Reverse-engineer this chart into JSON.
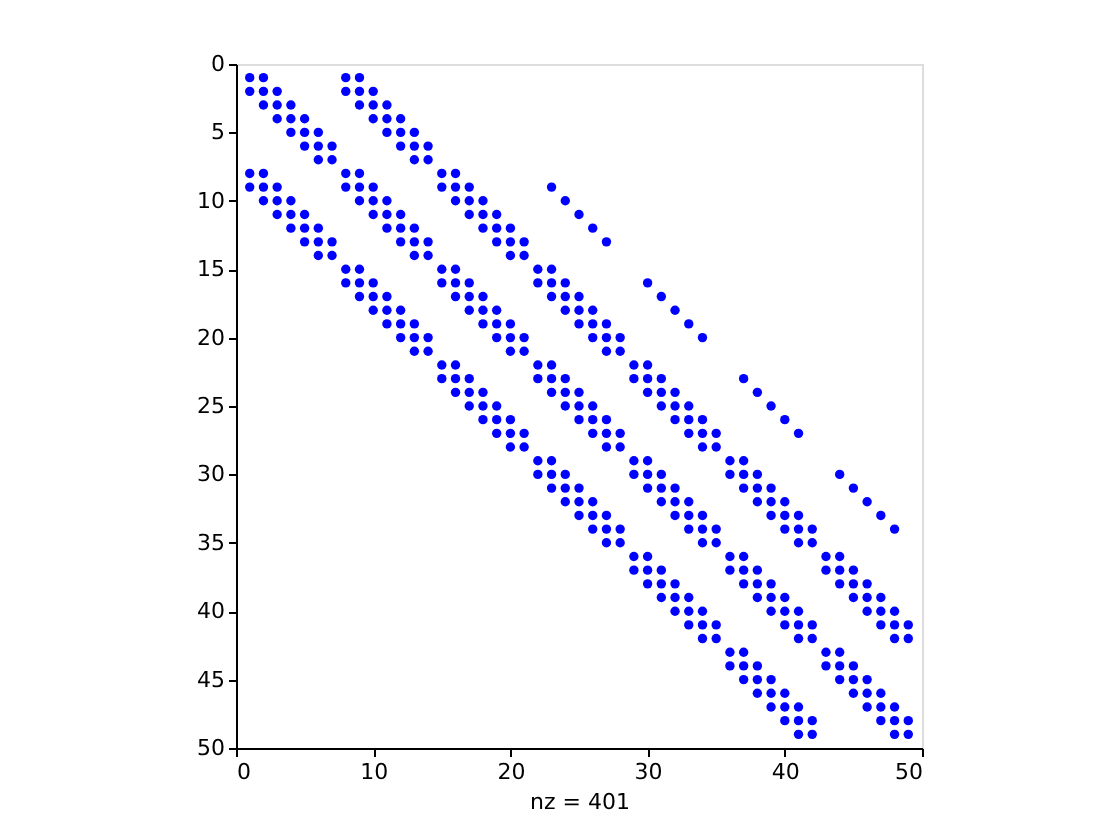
{
  "chart_data": {
    "type": "scatter",
    "xlabel": "nz = 401",
    "color": "#0000ff",
    "marker": "circle",
    "grid": false,
    "xlim": [
      0,
      50
    ],
    "xticks": [
      0,
      10,
      20,
      30,
      40,
      50
    ],
    "ylim": [
      50,
      0
    ],
    "yticks": [
      0,
      5,
      10,
      15,
      20,
      25,
      30,
      35,
      40,
      45,
      50
    ],
    "series": [
      {
        "x": [
          1,
          2,
          8,
          9
        ],
        "values": [
          1,
          1,
          1,
          1
        ]
      },
      {
        "x": [
          1,
          2,
          3,
          8,
          9,
          10
        ],
        "values": [
          2,
          2,
          2,
          2,
          2,
          2
        ]
      },
      {
        "x": [
          2,
          3,
          4,
          9,
          10,
          11
        ],
        "values": [
          3,
          3,
          3,
          3,
          3,
          3
        ]
      },
      {
        "x": [
          3,
          4,
          5,
          10,
          11,
          12
        ],
        "values": [
          4,
          4,
          4,
          4,
          4,
          4
        ]
      },
      {
        "x": [
          4,
          5,
          6,
          11,
          12,
          13
        ],
        "values": [
          5,
          5,
          5,
          5,
          5,
          5
        ]
      },
      {
        "x": [
          5,
          6,
          7,
          12,
          13,
          14
        ],
        "values": [
          6,
          6,
          6,
          6,
          6,
          6
        ]
      },
      {
        "x": [
          6,
          7,
          13,
          14
        ],
        "values": [
          7,
          7,
          7,
          7
        ]
      },
      {
        "x": [
          1,
          2,
          8,
          9,
          15,
          16
        ],
        "values": [
          8,
          8,
          8,
          8,
          8,
          8
        ]
      },
      {
        "x": [
          1,
          2,
          3,
          8,
          9,
          10,
          15,
          16,
          17,
          23
        ],
        "values": [
          9,
          9,
          9,
          9,
          9,
          9,
          9,
          9,
          9,
          9
        ]
      },
      {
        "x": [
          2,
          3,
          4,
          9,
          10,
          11,
          16,
          17,
          18,
          24
        ],
        "values": [
          10,
          10,
          10,
          10,
          10,
          10,
          10,
          10,
          10,
          10
        ]
      },
      {
        "x": [
          3,
          4,
          5,
          10,
          11,
          12,
          17,
          18,
          19,
          25
        ],
        "values": [
          11,
          11,
          11,
          11,
          11,
          11,
          11,
          11,
          11,
          11
        ]
      },
      {
        "x": [
          4,
          5,
          6,
          11,
          12,
          13,
          18,
          19,
          20,
          26
        ],
        "values": [
          12,
          12,
          12,
          12,
          12,
          12,
          12,
          12,
          12,
          12
        ]
      },
      {
        "x": [
          5,
          6,
          7,
          12,
          13,
          14,
          19,
          20,
          21,
          27
        ],
        "values": [
          13,
          13,
          13,
          13,
          13,
          13,
          13,
          13,
          13,
          13
        ]
      },
      {
        "x": [
          6,
          7,
          13,
          14,
          20,
          21
        ],
        "values": [
          14,
          14,
          14,
          14,
          14,
          14
        ]
      },
      {
        "x": [
          8,
          9,
          15,
          16,
          22,
          23
        ],
        "values": [
          15,
          15,
          15,
          15,
          15,
          15
        ]
      },
      {
        "x": [
          8,
          9,
          10,
          15,
          16,
          17,
          22,
          23,
          24,
          30
        ],
        "values": [
          16,
          16,
          16,
          16,
          16,
          16,
          16,
          16,
          16,
          16
        ]
      },
      {
        "x": [
          9,
          10,
          11,
          16,
          17,
          18,
          23,
          24,
          25,
          31
        ],
        "values": [
          17,
          17,
          17,
          17,
          17,
          17,
          17,
          17,
          17,
          17
        ]
      },
      {
        "x": [
          10,
          11,
          12,
          17,
          18,
          19,
          24,
          25,
          26,
          32
        ],
        "values": [
          18,
          18,
          18,
          18,
          18,
          18,
          18,
          18,
          18,
          18
        ]
      },
      {
        "x": [
          11,
          12,
          13,
          18,
          19,
          20,
          25,
          26,
          27,
          33
        ],
        "values": [
          19,
          19,
          19,
          19,
          19,
          19,
          19,
          19,
          19,
          19
        ]
      },
      {
        "x": [
          12,
          13,
          14,
          19,
          20,
          21,
          26,
          27,
          28,
          34
        ],
        "values": [
          20,
          20,
          20,
          20,
          20,
          20,
          20,
          20,
          20,
          20
        ]
      },
      {
        "x": [
          13,
          14,
          20,
          21,
          27,
          28
        ],
        "values": [
          21,
          21,
          21,
          21,
          21,
          21
        ]
      },
      {
        "x": [
          15,
          16,
          22,
          23,
          29,
          30
        ],
        "values": [
          22,
          22,
          22,
          22,
          22,
          22
        ]
      },
      {
        "x": [
          15,
          16,
          17,
          22,
          23,
          24,
          29,
          30,
          31,
          37
        ],
        "values": [
          23,
          23,
          23,
          23,
          23,
          23,
          23,
          23,
          23,
          23
        ]
      },
      {
        "x": [
          16,
          17,
          18,
          23,
          24,
          25,
          30,
          31,
          32,
          38
        ],
        "values": [
          24,
          24,
          24,
          24,
          24,
          24,
          24,
          24,
          24,
          24
        ]
      },
      {
        "x": [
          17,
          18,
          19,
          24,
          25,
          26,
          31,
          32,
          33,
          39
        ],
        "values": [
          25,
          25,
          25,
          25,
          25,
          25,
          25,
          25,
          25,
          25
        ]
      },
      {
        "x": [
          18,
          19,
          20,
          25,
          26,
          27,
          32,
          33,
          34,
          40
        ],
        "values": [
          26,
          26,
          26,
          26,
          26,
          26,
          26,
          26,
          26,
          26
        ]
      },
      {
        "x": [
          19,
          20,
          21,
          26,
          27,
          28,
          33,
          34,
          35,
          41
        ],
        "values": [
          27,
          27,
          27,
          27,
          27,
          27,
          27,
          27,
          27,
          27
        ]
      },
      {
        "x": [
          20,
          21,
          27,
          28,
          34,
          35
        ],
        "values": [
          28,
          28,
          28,
          28,
          28,
          28
        ]
      },
      {
        "x": [
          22,
          23,
          29,
          30,
          36,
          37
        ],
        "values": [
          29,
          29,
          29,
          29,
          29,
          29
        ]
      },
      {
        "x": [
          22,
          23,
          24,
          29,
          30,
          31,
          36,
          37,
          38,
          44
        ],
        "values": [
          30,
          30,
          30,
          30,
          30,
          30,
          30,
          30,
          30,
          30
        ]
      },
      {
        "x": [
          23,
          24,
          25,
          30,
          31,
          32,
          37,
          38,
          39,
          45
        ],
        "values": [
          31,
          31,
          31,
          31,
          31,
          31,
          31,
          31,
          31,
          31
        ]
      },
      {
        "x": [
          24,
          25,
          26,
          31,
          32,
          33,
          38,
          39,
          40,
          46
        ],
        "values": [
          32,
          32,
          32,
          32,
          32,
          32,
          32,
          32,
          32,
          32
        ]
      },
      {
        "x": [
          25,
          26,
          27,
          32,
          33,
          34,
          39,
          40,
          41,
          47
        ],
        "values": [
          33,
          33,
          33,
          33,
          33,
          33,
          33,
          33,
          33,
          33
        ]
      },
      {
        "x": [
          26,
          27,
          28,
          33,
          34,
          35,
          40,
          41,
          42,
          48
        ],
        "values": [
          34,
          34,
          34,
          34,
          34,
          34,
          34,
          34,
          34,
          34
        ]
      },
      {
        "x": [
          27,
          28,
          34,
          35,
          41,
          42
        ],
        "values": [
          35,
          35,
          35,
          35,
          35,
          35
        ]
      },
      {
        "x": [
          29,
          30,
          36,
          37,
          43,
          44
        ],
        "values": [
          36,
          36,
          36,
          36,
          36,
          36
        ]
      },
      {
        "x": [
          29,
          30,
          31,
          36,
          37,
          38,
          43,
          44,
          45
        ],
        "values": [
          37,
          37,
          37,
          37,
          37,
          37,
          37,
          37,
          37
        ]
      },
      {
        "x": [
          30,
          31,
          32,
          37,
          38,
          39,
          44,
          45,
          46
        ],
        "values": [
          38,
          38,
          38,
          38,
          38,
          38,
          38,
          38,
          38
        ]
      },
      {
        "x": [
          31,
          32,
          33,
          38,
          39,
          40,
          45,
          46,
          47
        ],
        "values": [
          39,
          39,
          39,
          39,
          39,
          39,
          39,
          39,
          39
        ]
      },
      {
        "x": [
          32,
          33,
          34,
          39,
          40,
          41,
          46,
          47,
          48
        ],
        "values": [
          40,
          40,
          40,
          40,
          40,
          40,
          40,
          40,
          40
        ]
      },
      {
        "x": [
          33,
          34,
          35,
          40,
          41,
          42,
          47,
          48,
          49
        ],
        "values": [
          41,
          41,
          41,
          41,
          41,
          41,
          41,
          41,
          41
        ]
      },
      {
        "x": [
          34,
          35,
          41,
          42,
          48,
          49
        ],
        "values": [
          42,
          42,
          42,
          42,
          42,
          42
        ]
      },
      {
        "x": [
          36,
          37,
          43,
          44
        ],
        "values": [
          43,
          43,
          43,
          43
        ]
      },
      {
        "x": [
          36,
          37,
          38,
          43,
          44,
          45
        ],
        "values": [
          44,
          44,
          44,
          44,
          44,
          44
        ]
      },
      {
        "x": [
          37,
          38,
          39,
          44,
          45,
          46
        ],
        "values": [
          45,
          45,
          45,
          45,
          45,
          45
        ]
      },
      {
        "x": [
          38,
          39,
          40,
          45,
          46,
          47
        ],
        "values": [
          46,
          46,
          46,
          46,
          46,
          46
        ]
      },
      {
        "x": [
          39,
          40,
          41,
          46,
          47,
          48
        ],
        "values": [
          47,
          47,
          47,
          47,
          47,
          47
        ]
      },
      {
        "x": [
          40,
          41,
          42,
          47,
          48,
          49
        ],
        "values": [
          48,
          48,
          48,
          48,
          48,
          48
        ]
      },
      {
        "x": [
          41,
          42,
          48,
          49
        ],
        "values": [
          49,
          49,
          49,
          49
        ]
      }
    ]
  }
}
